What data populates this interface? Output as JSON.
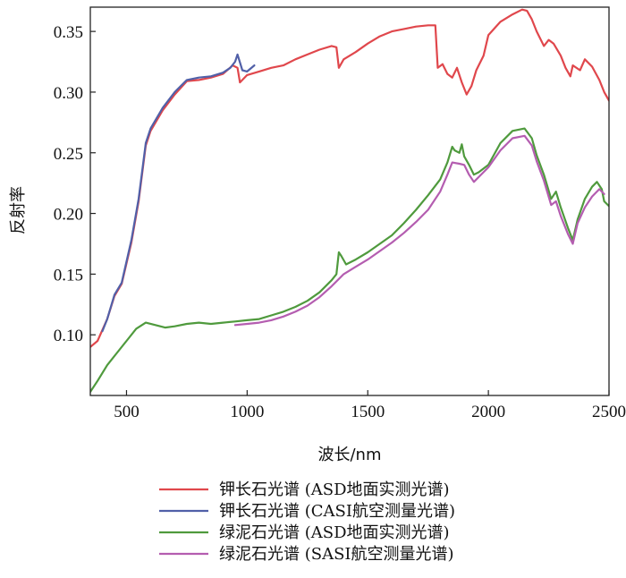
{
  "chart_data": {
    "type": "line",
    "xlabel": "波长/nm",
    "ylabel": "反射率",
    "xlim": [
      350,
      2500
    ],
    "ylim": [
      0.05,
      0.37
    ],
    "xticks": [
      500,
      1000,
      1500,
      2000,
      2500
    ],
    "xtick_labels": [
      "500",
      "1000",
      "1500",
      "2000",
      "2500"
    ],
    "yticks": [
      0.1,
      0.15,
      0.2,
      0.25,
      0.3,
      0.35
    ],
    "ytick_labels": [
      "0.10",
      "0.15",
      "0.20",
      "0.25",
      "0.30",
      "0.35"
    ],
    "grid": false,
    "legend_position": "bottom",
    "series": [
      {
        "name": "钾长石光谱 (ASD地面实测光谱)",
        "color": "#e0474c",
        "x": [
          350,
          380,
          420,
          450,
          480,
          520,
          550,
          580,
          600,
          650,
          700,
          750,
          800,
          850,
          900,
          940,
          960,
          970,
          1000,
          1050,
          1100,
          1150,
          1200,
          1250,
          1300,
          1350,
          1370,
          1380,
          1400,
          1450,
          1500,
          1550,
          1600,
          1650,
          1700,
          1750,
          1780,
          1790,
          1810,
          1830,
          1850,
          1870,
          1890,
          1910,
          1930,
          1950,
          1980,
          2000,
          2050,
          2100,
          2140,
          2160,
          2180,
          2200,
          2230,
          2250,
          2270,
          2300,
          2320,
          2340,
          2350,
          2380,
          2400,
          2430,
          2460,
          2480,
          2500
        ],
        "y": [
          0.09,
          0.095,
          0.113,
          0.132,
          0.142,
          0.176,
          0.21,
          0.256,
          0.268,
          0.285,
          0.298,
          0.309,
          0.31,
          0.312,
          0.315,
          0.322,
          0.32,
          0.308,
          0.314,
          0.317,
          0.32,
          0.322,
          0.327,
          0.331,
          0.335,
          0.338,
          0.337,
          0.32,
          0.327,
          0.333,
          0.34,
          0.346,
          0.35,
          0.352,
          0.354,
          0.355,
          0.355,
          0.32,
          0.323,
          0.315,
          0.312,
          0.32,
          0.308,
          0.298,
          0.305,
          0.318,
          0.33,
          0.347,
          0.358,
          0.364,
          0.368,
          0.367,
          0.36,
          0.35,
          0.338,
          0.343,
          0.34,
          0.33,
          0.32,
          0.313,
          0.322,
          0.318,
          0.327,
          0.321,
          0.31,
          0.3,
          0.293
        ]
      },
      {
        "name": "钾长石光谱 (CASI航空测量光谱)",
        "color": "#5160a8",
        "x": [
          400,
          420,
          450,
          480,
          520,
          550,
          580,
          600,
          650,
          700,
          750,
          800,
          850,
          900,
          930,
          950,
          960,
          980,
          1000,
          1030
        ],
        "y": [
          0.103,
          0.113,
          0.133,
          0.143,
          0.178,
          0.212,
          0.258,
          0.27,
          0.287,
          0.3,
          0.31,
          0.312,
          0.313,
          0.316,
          0.32,
          0.325,
          0.331,
          0.318,
          0.317,
          0.322
        ]
      },
      {
        "name": "绿泥石光谱 (ASD地面实测光谱)",
        "color": "#4f9a3d",
        "x": [
          350,
          380,
          420,
          460,
          500,
          540,
          580,
          620,
          660,
          700,
          750,
          800,
          850,
          900,
          950,
          1000,
          1050,
          1100,
          1150,
          1200,
          1250,
          1300,
          1350,
          1370,
          1380,
          1390,
          1410,
          1450,
          1500,
          1550,
          1600,
          1650,
          1700,
          1750,
          1800,
          1830,
          1850,
          1860,
          1880,
          1890,
          1900,
          1920,
          1940,
          1960,
          2000,
          2050,
          2100,
          2150,
          2180,
          2200,
          2230,
          2260,
          2280,
          2300,
          2330,
          2350,
          2370,
          2400,
          2430,
          2450,
          2470,
          2480,
          2500
        ],
        "y": [
          0.053,
          0.062,
          0.075,
          0.085,
          0.095,
          0.105,
          0.11,
          0.108,
          0.106,
          0.107,
          0.109,
          0.11,
          0.109,
          0.11,
          0.111,
          0.112,
          0.113,
          0.116,
          0.119,
          0.123,
          0.128,
          0.135,
          0.145,
          0.15,
          0.168,
          0.165,
          0.158,
          0.162,
          0.168,
          0.175,
          0.182,
          0.192,
          0.203,
          0.215,
          0.228,
          0.242,
          0.255,
          0.252,
          0.25,
          0.257,
          0.247,
          0.24,
          0.232,
          0.234,
          0.24,
          0.258,
          0.268,
          0.27,
          0.262,
          0.248,
          0.232,
          0.212,
          0.218,
          0.205,
          0.188,
          0.178,
          0.195,
          0.212,
          0.222,
          0.226,
          0.22,
          0.21,
          0.206
        ]
      },
      {
        "name": "绿泥石光谱 (SASI航空测量光谱)",
        "color": "#b45db0",
        "x": [
          950,
          1000,
          1050,
          1100,
          1150,
          1200,
          1250,
          1300,
          1350,
          1400,
          1450,
          1500,
          1550,
          1600,
          1650,
          1700,
          1750,
          1800,
          1830,
          1850,
          1880,
          1900,
          1920,
          1940,
          1960,
          2000,
          2050,
          2100,
          2150,
          2180,
          2200,
          2230,
          2260,
          2280,
          2300,
          2330,
          2350,
          2370,
          2400,
          2430,
          2460,
          2480
        ],
        "y": [
          0.108,
          0.109,
          0.11,
          0.112,
          0.115,
          0.119,
          0.124,
          0.131,
          0.14,
          0.15,
          0.156,
          0.162,
          0.169,
          0.176,
          0.184,
          0.193,
          0.203,
          0.218,
          0.232,
          0.242,
          0.241,
          0.24,
          0.232,
          0.226,
          0.23,
          0.238,
          0.252,
          0.262,
          0.264,
          0.256,
          0.243,
          0.227,
          0.207,
          0.21,
          0.198,
          0.183,
          0.175,
          0.192,
          0.205,
          0.214,
          0.22,
          0.216
        ]
      }
    ]
  }
}
